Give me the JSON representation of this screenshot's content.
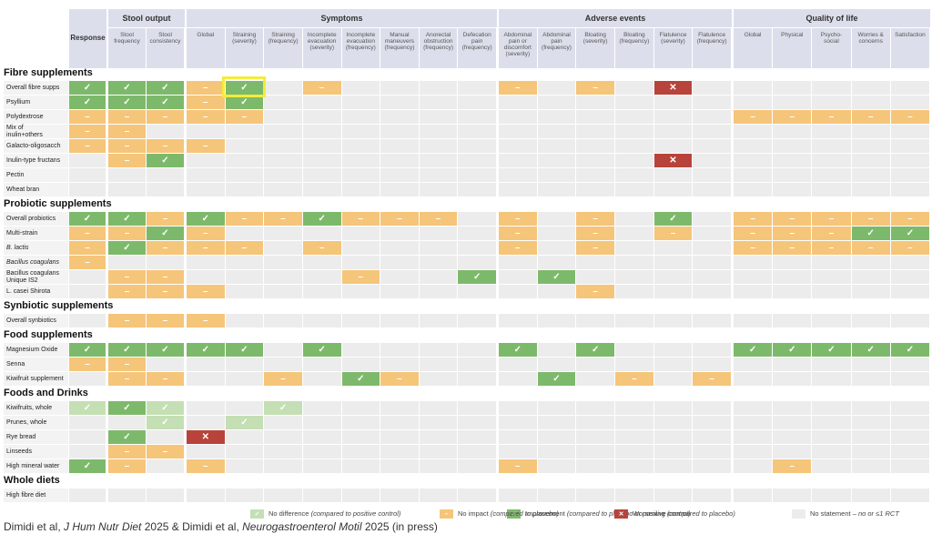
{
  "header": {
    "response": "Response",
    "groups": [
      {
        "name": "Stool output",
        "columns": [
          [
            "Stool",
            "frequency"
          ],
          [
            "Stool",
            "consistency"
          ]
        ]
      },
      {
        "name": "Symptoms",
        "columns": [
          [
            "Global"
          ],
          [
            "Straining",
            "(severity)"
          ],
          [
            "Straining",
            "(frequency)"
          ],
          [
            "Incomplete",
            "evacuation",
            "(severity)"
          ],
          [
            "Incomplete",
            "evacuation",
            "(frequency)"
          ],
          [
            "Manual",
            "maneuvers",
            "(frequency)"
          ],
          [
            "Anorectal",
            "obstruction",
            "(frequency)"
          ],
          [
            "Defecation",
            "pain",
            "(frequency)"
          ]
        ]
      },
      {
        "name": "Adverse events",
        "columns": [
          [
            "Abdominal",
            "pain or",
            "discomfort",
            "(severity)"
          ],
          [
            "Abdominal",
            "pain",
            "(frequency)"
          ],
          [
            "Bloating",
            "(severity)"
          ],
          [
            "Bloating",
            "(frequency)"
          ],
          [
            "Flatulence",
            "(severity)"
          ],
          [
            "Flatulence",
            "(frequency)"
          ]
        ]
      },
      {
        "name": "Quality of life",
        "columns": [
          [
            "Global"
          ],
          [
            "Physical"
          ],
          [
            "Psycho-",
            "social"
          ],
          [
            "Worries &",
            "concerns"
          ],
          [
            "Satisfaction"
          ]
        ]
      }
    ]
  },
  "sections": [
    {
      "name": "Fibre supplements",
      "rows": [
        {
          "label": "Overall fibre supps",
          "cells": [
            "#7db96b",
            "#7db96b",
            "#7db96b",
            "#f5c57a",
            "#7db96b",
            "#ececec",
            "#f5c57a",
            "#ececec",
            "#ececec",
            "#ececec",
            "#ececec",
            "#f5c57a",
            "#ececec",
            "#f5c57a",
            "#ececec",
            "#b8433a",
            "#ececec",
            "#ececec",
            "#ececec",
            "#ececec",
            "#ececec",
            "#ececec"
          ]
        },
        {
          "label": "Psyllium",
          "cells": [
            "#7db96b",
            "#7db96b",
            "#7db96b",
            "#f5c57a",
            "#7db96b",
            "#ececec",
            "#ececec",
            "#ececec",
            "#ececec",
            "#ececec",
            "#ececec",
            "#ececec",
            "#ececec",
            "#ececec",
            "#ececec",
            "#ececec",
            "#ececec",
            "#ececec",
            "#ececec",
            "#ececec",
            "#ececec",
            "#ececec"
          ]
        },
        {
          "label": "Polydextrose",
          "cells": [
            "#f5c57a",
            "#f5c57a",
            "#f5c57a",
            "#f5c57a",
            "#f5c57a",
            "#ececec",
            "#ececec",
            "#ececec",
            "#ececec",
            "#ececec",
            "#ececec",
            "#ececec",
            "#ececec",
            "#ececec",
            "#ececec",
            "#ececec",
            "#ececec",
            "#f5c57a",
            "#f5c57a",
            "#f5c57a",
            "#f5c57a",
            "#f5c57a"
          ]
        },
        {
          "label": [
            "Mix of",
            "inulin+others"
          ],
          "cells": [
            "#f5c57a",
            "#f5c57a",
            "#ececec",
            "#ececec",
            "#ececec",
            "#ececec",
            "#ececec",
            "#ececec",
            "#ececec",
            "#ececec",
            "#ececec",
            "#ececec",
            "#ececec",
            "#ececec",
            "#ececec",
            "#ececec",
            "#ececec",
            "#ececec",
            "#ececec",
            "#ececec",
            "#ececec",
            "#ececec"
          ]
        },
        {
          "label": "Galacto-oligosacch",
          "cells": [
            "#f5c57a",
            "#f5c57a",
            "#f5c57a",
            "#f5c57a",
            "#ececec",
            "#ececec",
            "#ececec",
            "#ececec",
            "#ececec",
            "#ececec",
            "#ececec",
            "#ececec",
            "#ececec",
            "#ececec",
            "#ececec",
            "#ececec",
            "#ececec",
            "#ececec",
            "#ececec",
            "#ececec",
            "#ececec",
            "#ececec"
          ]
        },
        {
          "label": "Inulin-type fructans",
          "cells": [
            "#ececec",
            "#f5c57a",
            "#7db96b",
            "#ececec",
            "#ececec",
            "#ececec",
            "#ececec",
            "#ececec",
            "#ececec",
            "#ececec",
            "#ececec",
            "#ececec",
            "#ececec",
            "#ececec",
            "#ececec",
            "#b8433a",
            "#ececec",
            "#ececec",
            "#ececec",
            "#ececec",
            "#ececec",
            "#ececec"
          ]
        },
        {
          "label": "Pectin",
          "cells": [
            "#ececec",
            "#ececec",
            "#ececec",
            "#ececec",
            "#ececec",
            "#ececec",
            "#ececec",
            "#ececec",
            "#ececec",
            "#ececec",
            "#ececec",
            "#ececec",
            "#ececec",
            "#ececec",
            "#ececec",
            "#ececec",
            "#ececec",
            "#ececec",
            "#ececec",
            "#ececec",
            "#ececec",
            "#ececec"
          ]
        },
        {
          "label": "Wheat bran",
          "cells": [
            "#ececec",
            "#ececec",
            "#ececec",
            "#ececec",
            "#ececec",
            "#ececec",
            "#ececec",
            "#ececec",
            "#ececec",
            "#ececec",
            "#ececec",
            "#ececec",
            "#ececec",
            "#ececec",
            "#ececec",
            "#ececec",
            "#ececec",
            "#ececec",
            "#ececec",
            "#ececec",
            "#ececec",
            "#ececec"
          ]
        }
      ]
    },
    {
      "name": "Probiotic supplements",
      "rows": [
        {
          "label": "Overall probiotics",
          "cells": [
            "#7db96b",
            "#7db96b",
            "#f5c57a",
            "#7db96b",
            "#f5c57a",
            "#f5c57a",
            "#7db96b",
            "#f5c57a",
            "#f5c57a",
            "#f5c57a",
            "#ececec",
            "#f5c57a",
            "#ececec",
            "#f5c57a",
            "#ececec",
            "#7db96b",
            "#ececec",
            "#f5c57a",
            "#f5c57a",
            "#f5c57a",
            "#f5c57a",
            "#f5c57a"
          ]
        },
        {
          "label": "Multi-strain",
          "cells": [
            "#f5c57a",
            "#f5c57a",
            "#7db96b",
            "#f5c57a",
            "#ececec",
            "#ececec",
            "#ececec",
            "#ececec",
            "#ececec",
            "#ececec",
            "#ececec",
            "#f5c57a",
            "#ececec",
            "#f5c57a",
            "#ececec",
            "#f5c57a",
            "#ececec",
            "#f5c57a",
            "#f5c57a",
            "#f5c57a",
            "#7db96b",
            "#7db96b"
          ]
        },
        {
          "label": "B. lactis",
          "italic": true,
          "cells": [
            "#f5c57a",
            "#7db96b",
            "#f5c57a",
            "#f5c57a",
            "#f5c57a",
            "#ececec",
            "#f5c57a",
            "#ececec",
            "#ececec",
            "#ececec",
            "#ececec",
            "#f5c57a",
            "#ececec",
            "#f5c57a",
            "#ececec",
            "#ececec",
            "#ececec",
            "#f5c57a",
            "#f5c57a",
            "#f5c57a",
            "#f5c57a",
            "#f5c57a"
          ]
        },
        {
          "label": "Bacillus coagulans",
          "italic": true,
          "cells": [
            "#f5c57a",
            "#ececec",
            "#ececec",
            "#ececec",
            "#ececec",
            "#ececec",
            "#ececec",
            "#ececec",
            "#ececec",
            "#ececec",
            "#ececec",
            "#ececec",
            "#ececec",
            "#ececec",
            "#ececec",
            "#ececec",
            "#ececec",
            "#ececec",
            "#ececec",
            "#ececec",
            "#ececec",
            "#ececec"
          ]
        },
        {
          "label": [
            "Bacillus coagulans",
            "Unique IS2"
          ],
          "cells": [
            "#ececec",
            "#f5c57a",
            "#f5c57a",
            "#ececec",
            "#ececec",
            "#ececec",
            "#ececec",
            "#f5c57a",
            "#ececec",
            "#ececec",
            "#7db96b",
            "#ececec",
            "#7db96b",
            "#ececec",
            "#ececec",
            "#ececec",
            "#ececec",
            "#ececec",
            "#ececec",
            "#ececec",
            "#ececec",
            "#ececec"
          ]
        },
        {
          "label": "L. casei Shirota",
          "cells": [
            "#ececec",
            "#f5c57a",
            "#f5c57a",
            "#f5c57a",
            "#ececec",
            "#ececec",
            "#ececec",
            "#ececec",
            "#ececec",
            "#ececec",
            "#ececec",
            "#ececec",
            "#ececec",
            "#f5c57a",
            "#ececec",
            "#ececec",
            "#ececec",
            "#ececec",
            "#ececec",
            "#ececec",
            "#ececec",
            "#ececec"
          ]
        }
      ]
    },
    {
      "name": "Synbiotic supplements",
      "rows": [
        {
          "label": "Overall synbiotics",
          "cells": [
            "#ececec",
            "#f5c57a",
            "#f5c57a",
            "#f5c57a",
            "#ececec",
            "#ececec",
            "#ececec",
            "#ececec",
            "#ececec",
            "#ececec",
            "#ececec",
            "#ececec",
            "#ececec",
            "#ececec",
            "#ececec",
            "#ececec",
            "#ececec",
            "#ececec",
            "#ececec",
            "#ececec",
            "#ececec",
            "#ececec"
          ]
        }
      ]
    },
    {
      "name": "Food supplements",
      "rows": [
        {
          "label": "Magnesium Oxide",
          "cells": [
            "#7db96b",
            "#7db96b",
            "#7db96b",
            "#7db96b",
            "#7db96b",
            "#ececec",
            "#7db96b",
            "#ececec",
            "#ececec",
            "#ececec",
            "#ececec",
            "#7db96b",
            "#ececec",
            "#7db96b",
            "#ececec",
            "#ececec",
            "#ececec",
            "#7db96b",
            "#7db96b",
            "#7db96b",
            "#7db96b",
            "#7db96b"
          ]
        },
        {
          "label": "Senna",
          "cells": [
            "#f5c57a",
            "#f5c57a",
            "#ececec",
            "#ececec",
            "#ececec",
            "#ececec",
            "#ececec",
            "#ececec",
            "#ececec",
            "#ececec",
            "#ececec",
            "#ececec",
            "#ececec",
            "#ececec",
            "#ececec",
            "#ececec",
            "#ececec",
            "#ececec",
            "#ececec",
            "#ececec",
            "#ececec",
            "#ececec"
          ]
        },
        {
          "label": "Kiwifruit supplement",
          "cells": [
            "#ececec",
            "#f5c57a",
            "#f5c57a",
            "#ececec",
            "#ececec",
            "#f5c57a",
            "#ececec",
            "#7db96b",
            "#f5c57a",
            "#ececec",
            "#ececec",
            "#ececec",
            "#7db96b",
            "#ececec",
            "#f5c57a",
            "#ececec",
            "#f5c57a",
            "#ececec",
            "#ececec",
            "#ececec",
            "#ececec",
            "#ececec"
          ]
        }
      ]
    },
    {
      "name": "Foods and Drinks",
      "rows": [
        {
          "label": "Kiwifruits, whole",
          "cells": [
            "#c5dfb4",
            "#7db96b",
            "#c5dfb4",
            "#ececec",
            "#ececec",
            "#c5dfb4",
            "#ececec",
            "#ececec",
            "#ececec",
            "#ececec",
            "#ececec",
            "#ececec",
            "#ececec",
            "#ececec",
            "#ececec",
            "#ececec",
            "#ececec",
            "#ececec",
            "#ececec",
            "#ececec",
            "#ececec",
            "#ececec"
          ]
        },
        {
          "label": "Prunes, whole",
          "cells": [
            "#ececec",
            "#ececec",
            "#c5dfb4",
            "#ececec",
            "#c5dfb4",
            "#ececec",
            "#ececec",
            "#ececec",
            "#ececec",
            "#ececec",
            "#ececec",
            "#ececec",
            "#ececec",
            "#ececec",
            "#ececec",
            "#ececec",
            "#ececec",
            "#ececec",
            "#ececec",
            "#ececec",
            "#ececec",
            "#ececec"
          ]
        },
        {
          "label": "Rye bread",
          "cells": [
            "#ececec",
            "#7db96b",
            "#ececec",
            "#b8433a",
            "#ececec",
            "#ececec",
            "#ececec",
            "#ececec",
            "#ececec",
            "#ececec",
            "#ececec",
            "#ececec",
            "#ececec",
            "#ececec",
            "#ececec",
            "#ececec",
            "#ececec",
            "#ececec",
            "#ececec",
            "#ececec",
            "#ececec",
            "#ececec"
          ]
        },
        {
          "label": "Linseeds",
          "cells": [
            "#ececec",
            "#f5c57a",
            "#f5c57a",
            "#ececec",
            "#ececec",
            "#ececec",
            "#ececec",
            "#ececec",
            "#ececec",
            "#ececec",
            "#ececec",
            "#ececec",
            "#ececec",
            "#ececec",
            "#ececec",
            "#ececec",
            "#ececec",
            "#ececec",
            "#ececec",
            "#ececec",
            "#ececec",
            "#ececec"
          ]
        },
        {
          "label": "High mineral water",
          "cells": [
            "#7db96b",
            "#f5c57a",
            "#ececec",
            "#f5c57a",
            "#ececec",
            "#ececec",
            "#ececec",
            "#ececec",
            "#ececec",
            "#ececec",
            "#ececec",
            "#f5c57a",
            "#ececec",
            "#ececec",
            "#ececec",
            "#ececec",
            "#ececec",
            "#ececec",
            "#f5c57a",
            "#ececec",
            "#ececec",
            "#ececec"
          ]
        }
      ]
    },
    {
      "name": "Whole diets",
      "rows": [
        {
          "label": "High fibre diet",
          "cells": [
            "#ececec",
            "#ececec",
            "#ececec",
            "#ececec",
            "#ececec",
            "#ececec",
            "#ececec",
            "#ececec",
            "#ececec",
            "#ececec",
            "#ececec",
            "#ececec",
            "#ececec",
            "#ececec",
            "#ececec",
            "#ececec",
            "#ececec",
            "#ececec",
            "#ececec",
            "#ececec",
            "#ececec",
            "#ececec"
          ]
        }
      ]
    }
  ],
  "legend": [
    {
      "color": "#7db96b",
      "symbol": "✓",
      "label": "Improvement",
      "note": "(compared to placebo or positive control)"
    },
    {
      "color": "#c5dfb4",
      "symbol": "✓",
      "label": "No difference",
      "note": "(compared to positive control)"
    },
    {
      "color": "#f5c57a",
      "symbol": "–",
      "label": "No impact",
      "note": "(compared to placebo)"
    },
    {
      "color": "#b8433a",
      "symbol": "✕",
      "label": "Worsening",
      "note": "(compared to placebo)"
    },
    {
      "color": "#ececec",
      "label": "No statement",
      "note": "– no or ≤1 RCT"
    }
  ],
  "citation": [
    "Dimidi et al, ",
    "J Hum Nutr Diet",
    " 2025 & Dimidi et al, ",
    "Neurogastroenterol Motil",
    " 2025 (in press)"
  ]
}
